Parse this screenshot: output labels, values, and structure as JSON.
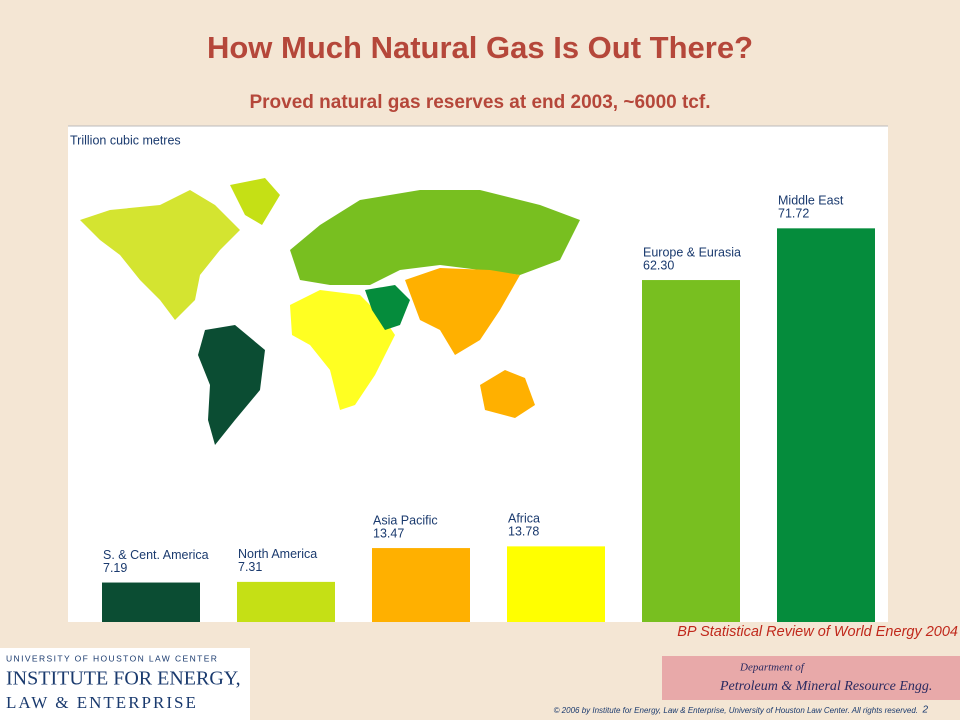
{
  "chart_data": {
    "type": "bar",
    "title": "How Much Natural Gas Is Out There?",
    "subtitle": "Proved natural gas reserves at end 2003, ~6000 tcf.",
    "y_label": "Trillion cubic metres",
    "categories": [
      "S. & Cent. America",
      "North America",
      "Asia Pacific",
      "Africa",
      "Europe & Eurasia",
      "Middle East"
    ],
    "values": [
      7.19,
      7.31,
      13.47,
      13.78,
      62.3,
      71.72
    ],
    "value_labels": [
      "7.19",
      "7.31",
      "13.47",
      "13.78",
      "62.30",
      "71.72"
    ],
    "colors": [
      "#0b4d33",
      "#c5e015",
      "#ffb000",
      "#ffff00",
      "#78bf20",
      "#058c3c"
    ],
    "ylim": [
      0,
      90
    ],
    "source": "BP Statistical Review of World Energy 2004"
  },
  "logos": {
    "left_top": "UNIVERSITY OF HOUSTON LAW CENTER",
    "left_main": "INSTITUTE FOR ENERGY,",
    "left_bottom": "LAW & ENTERPRISE",
    "right_top": "Department of",
    "right_main": "Petroleum & Mineral Resource Engg."
  },
  "footer": {
    "copyright": "© 2006 by Institute for Energy, Law & Enterprise, University of Houston Law Center.  All rights reserved.",
    "page_number": "2"
  }
}
